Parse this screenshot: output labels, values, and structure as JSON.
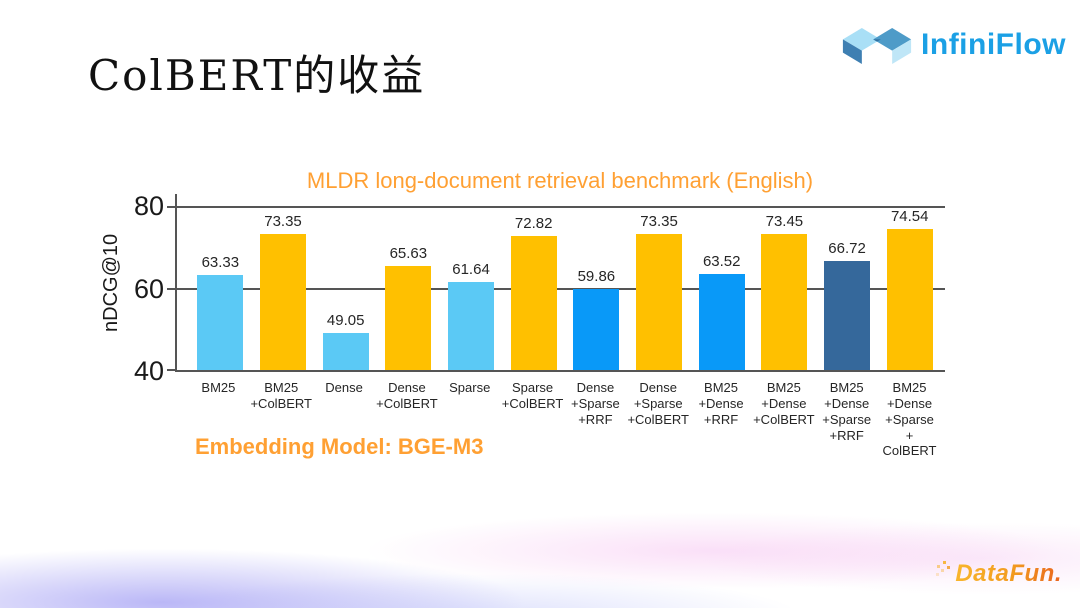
{
  "slide": {
    "title": "ColBERT的收益"
  },
  "header_logo": {
    "brand": "InfiniFlow",
    "text_color": "#1BA0E5"
  },
  "chart_data": {
    "type": "bar",
    "title": "MLDR long-document retrieval benchmark (English)",
    "title_color": "#FFA033",
    "ylabel": "nDCG@10",
    "ylim": [
      40,
      83.2
    ],
    "yticks": [
      80,
      60,
      40
    ],
    "gridlines": [
      80,
      60
    ],
    "grid_color": "#555555",
    "legend": "none",
    "categories": [
      [
        "BM25"
      ],
      [
        "BM25",
        "+ColBERT"
      ],
      [
        "Dense"
      ],
      [
        "Dense",
        "+ColBERT"
      ],
      [
        "Sparse"
      ],
      [
        "Sparse",
        "+ColBERT"
      ],
      [
        "Dense",
        "+Sparse",
        "+RRF"
      ],
      [
        "Dense",
        "+Sparse",
        "+ColBERT"
      ],
      [
        "BM25",
        "+Dense",
        "+RRF"
      ],
      [
        "BM25",
        "+Dense",
        "+ColBERT"
      ],
      [
        "BM25",
        "+Dense",
        "+Sparse",
        "+RRF"
      ],
      [
        "BM25",
        "+Dense",
        "+Sparse",
        "+ ColBERT"
      ]
    ],
    "values": [
      63.33,
      73.35,
      49.05,
      65.63,
      61.64,
      72.82,
      59.86,
      73.35,
      63.52,
      73.45,
      66.72,
      74.54
    ],
    "bar_colors": [
      "lightblue",
      "gold",
      "lightblue",
      "gold",
      "lightblue",
      "gold",
      "azure",
      "gold",
      "azure",
      "gold",
      "steel",
      "gold"
    ],
    "palette": {
      "lightblue": "#5BC9F5",
      "gold": "#FFC000",
      "azure": "#0999F8",
      "steel": "#35689B"
    },
    "note": "Embedding Model: BGE-M3"
  },
  "footer": {
    "brand_logo": "DataFun."
  }
}
